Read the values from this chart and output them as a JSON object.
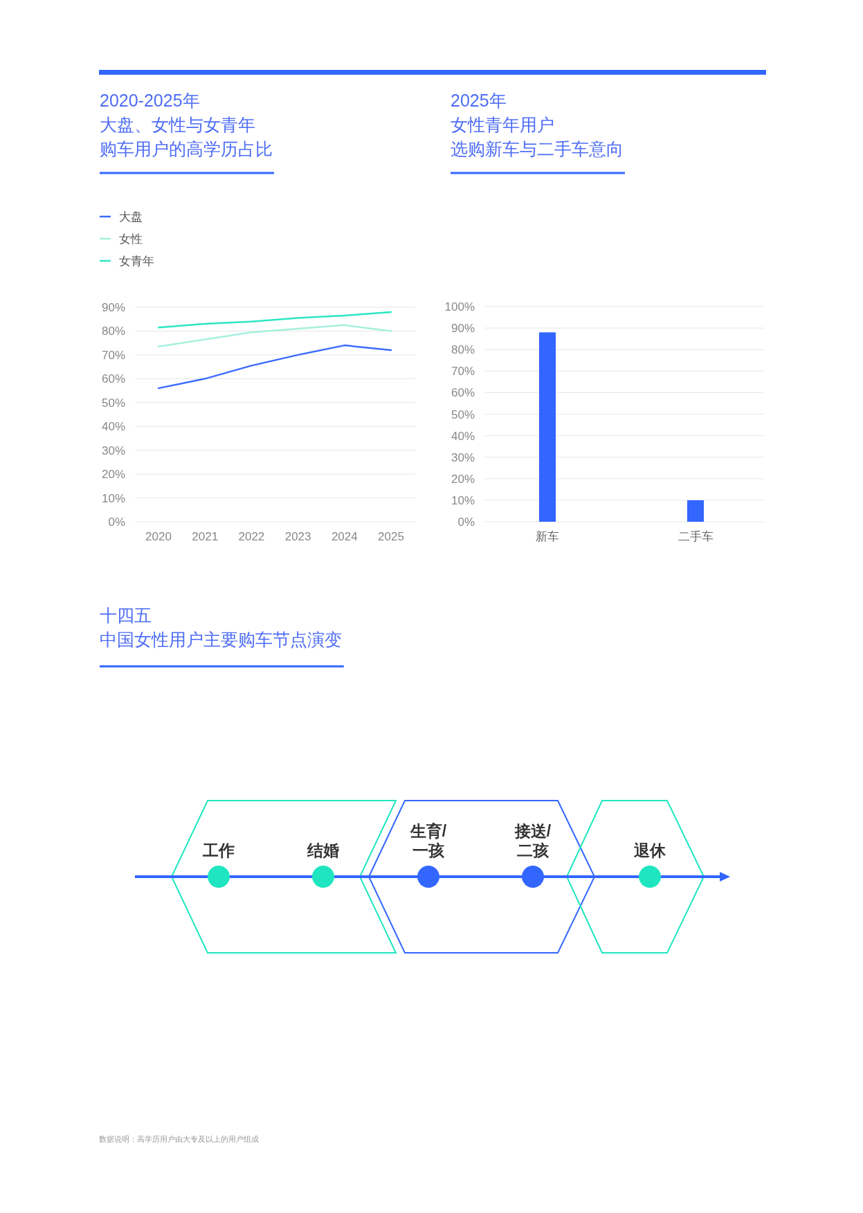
{
  "chart_data": [
    {
      "type": "line",
      "title": "2020-2025年大盘、女性与女青年购车用户的高学历占比",
      "categories": [
        "2020",
        "2021",
        "2022",
        "2023",
        "2024",
        "2025"
      ],
      "series": [
        {
          "name": "大盘",
          "color": "#3d6bff",
          "values": [
            56,
            60,
            65.5,
            70,
            74,
            72
          ]
        },
        {
          "name": "女性",
          "color": "#a6f0de",
          "values": [
            73.5,
            76.5,
            79.5,
            81,
            82.5,
            80
          ]
        },
        {
          "name": "女青年",
          "color": "#2ee6c2",
          "values": [
            81.5,
            83,
            84,
            85.5,
            86.5,
            88
          ]
        }
      ],
      "ylim": [
        0,
        90
      ],
      "yticks": [
        {
          "value": 0,
          "label": "0%"
        },
        {
          "value": 10,
          "label": "10%"
        },
        {
          "value": 20,
          "label": "20%"
        },
        {
          "value": 30,
          "label": "30%"
        },
        {
          "value": 40,
          "label": "40%"
        },
        {
          "value": 50,
          "label": "50%"
        },
        {
          "value": 60,
          "label": "60%"
        },
        {
          "value": 70,
          "label": "70%"
        },
        {
          "value": 80,
          "label": "80%"
        },
        {
          "value": 90,
          "label": "90%"
        }
      ],
      "grid": "y",
      "legend": "top left"
    },
    {
      "type": "bar",
      "title": "2025年女性青年用户选购新车与二手车意向",
      "categories": [
        "新车",
        "二手车"
      ],
      "values": [
        88,
        10
      ],
      "color": "#3366ff",
      "ylim": [
        0,
        100
      ],
      "yticks": [
        {
          "value": 0,
          "label": "0%"
        },
        {
          "value": 10,
          "label": "10%"
        },
        {
          "value": 20,
          "label": "20%"
        },
        {
          "value": 30,
          "label": "30%"
        },
        {
          "value": 40,
          "label": "40%"
        },
        {
          "value": 50,
          "label": "50%"
        },
        {
          "value": 60,
          "label": "60%"
        },
        {
          "value": 70,
          "label": "70%"
        },
        {
          "value": 80,
          "label": "80%"
        },
        {
          "value": 90,
          "label": "90%"
        },
        {
          "value": 100,
          "label": "100%"
        }
      ],
      "grid": "y"
    },
    {
      "type": "other",
      "title": "十四五中国女性用户主要购车节点演变",
      "categories": [
        "工作",
        "结婚",
        "生育/\n一孩",
        "接送/\n二孩",
        "退休"
      ],
      "colors": [
        "#1fe6c0",
        "#1fe6c0",
        "#3366ff",
        "#3366ff",
        "#1fe6c0"
      ],
      "annotations": [
        "数据说明：高学历用户由大专及以上的用户组成"
      ]
    }
  ]
}
